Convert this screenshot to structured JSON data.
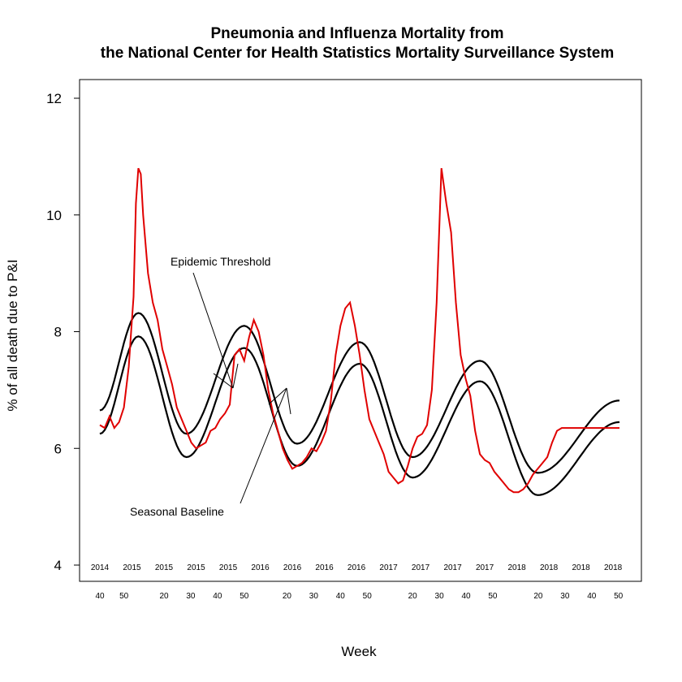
{
  "chart_data": {
    "type": "line",
    "title_line1": "Pneumonia and Influenza Mortality from",
    "title_line2": "the National Center for Health Statistics Mortality Surveillance System",
    "xlabel": "Week",
    "ylabel": "% of all death due to P&I",
    "ylim": [
      4,
      12
    ],
    "yticks": [
      4,
      6,
      8,
      10,
      12
    ],
    "xlim": [
      0,
      216
    ],
    "year_ticks": [
      {
        "x": 0,
        "label": "2014"
      },
      {
        "x": 10,
        "label": "2015"
      },
      {
        "x": 20,
        "label": "2015"
      },
      {
        "x": 30,
        "label": "2015"
      },
      {
        "x": 40,
        "label": "2015"
      },
      {
        "x": 50,
        "label": "2016"
      },
      {
        "x": 60,
        "label": "2016"
      },
      {
        "x": 70,
        "label": "2016"
      },
      {
        "x": 80,
        "label": "2016"
      },
      {
        "x": 90,
        "label": "2017"
      },
      {
        "x": 100,
        "label": "2017"
      },
      {
        "x": 110,
        "label": "2017"
      },
      {
        "x": 120,
        "label": "2017"
      },
      {
        "x": 130,
        "label": "2018"
      },
      {
        "x": 140,
        "label": "2018"
      },
      {
        "x": 150,
        "label": "2018"
      },
      {
        "x": 160,
        "label": "2018"
      }
    ],
    "week_ticks": [
      {
        "x": 0,
        "label": "40"
      },
      {
        "x": 9,
        "label": "50"
      },
      {
        "x": 24,
        "label": "20"
      },
      {
        "x": 34,
        "label": "30"
      },
      {
        "x": 44,
        "label": "40"
      },
      {
        "x": 54,
        "label": "50"
      },
      {
        "x": 70,
        "label": "20"
      },
      {
        "x": 80,
        "label": "30"
      },
      {
        "x": 90,
        "label": "40"
      },
      {
        "x": 100,
        "label": "50"
      },
      {
        "x": 117,
        "label": "20"
      },
      {
        "x": 127,
        "label": "30"
      },
      {
        "x": 137,
        "label": "40"
      },
      {
        "x": 147,
        "label": "50"
      },
      {
        "x": 164,
        "label": "20"
      },
      {
        "x": 174,
        "label": "30"
      },
      {
        "x": 184,
        "label": "40"
      },
      {
        "x": 194,
        "label": "50"
      }
    ],
    "annotations": {
      "epidemic_threshold": "Epidemic Threshold",
      "seasonal_baseline": "Seasonal Baseline"
    },
    "colors": {
      "observed": "#e00000",
      "threshold": "#000000",
      "baseline": "#000000"
    },
    "series": [
      {
        "role": "observed",
        "x": [
          0,
          2,
          4,
          6,
          8,
          10,
          12,
          13,
          14,
          15,
          16,
          17,
          18,
          20,
          22,
          24,
          26,
          28,
          30,
          32,
          34,
          36,
          38,
          40,
          42,
          44,
          46,
          48,
          50,
          52,
          54,
          56,
          58,
          60,
          62,
          64,
          66,
          68,
          70,
          72,
          74,
          76,
          78,
          80,
          82,
          84,
          86,
          88,
          90,
          92,
          94,
          96,
          98,
          100,
          102,
          104,
          106,
          108,
          110,
          112,
          114,
          116,
          118,
          120,
          122,
          124,
          126,
          128,
          130,
          132,
          134,
          136,
          138,
          140,
          142,
          144,
          146,
          148,
          150,
          152,
          154,
          156,
          158,
          160,
          162,
          164,
          166,
          168,
          170,
          172,
          174,
          176,
          178,
          180,
          182,
          184,
          186,
          188,
          190,
          192,
          194,
          196,
          198,
          200,
          202,
          204,
          206,
          208,
          210,
          212,
          214,
          216
        ],
        "y": [
          6.4,
          6.35,
          6.55,
          6.35,
          6.45,
          6.7,
          7.4,
          8.0,
          8.6,
          10.2,
          10.8,
          10.7,
          10.0,
          9.0,
          8.5,
          8.2,
          7.7,
          7.4,
          7.1,
          6.7,
          6.5,
          6.3,
          6.1,
          6.0,
          6.05,
          6.1,
          6.3,
          6.35,
          6.5,
          6.6,
          6.75,
          7.6,
          7.7,
          7.5,
          7.9,
          8.2,
          8.0,
          7.6,
          7.0,
          6.6,
          6.3,
          6.0,
          5.8,
          5.65,
          5.7,
          5.75,
          5.85,
          6.0,
          5.95,
          6.1,
          6.3,
          6.8,
          7.6,
          8.1,
          8.4,
          8.5,
          8.1,
          7.6,
          7.0,
          6.5,
          6.3,
          6.1,
          5.9,
          5.6,
          5.5,
          5.4,
          5.45,
          5.7,
          6.0,
          6.2,
          6.25,
          6.4,
          7.0,
          8.5,
          10.8,
          10.2,
          9.7,
          8.5,
          7.6,
          7.2,
          6.9,
          6.3,
          5.9,
          5.8,
          5.75,
          5.6,
          5.5,
          5.4,
          5.3,
          5.25,
          5.25,
          5.3,
          5.4,
          5.55,
          5.65,
          5.75,
          5.85,
          6.1,
          6.3,
          6.35,
          6.35,
          6.35,
          6.35,
          6.35,
          6.35,
          6.35,
          6.35,
          6.35,
          6.35,
          6.35,
          6.35,
          6.35
        ]
      }
    ]
  }
}
